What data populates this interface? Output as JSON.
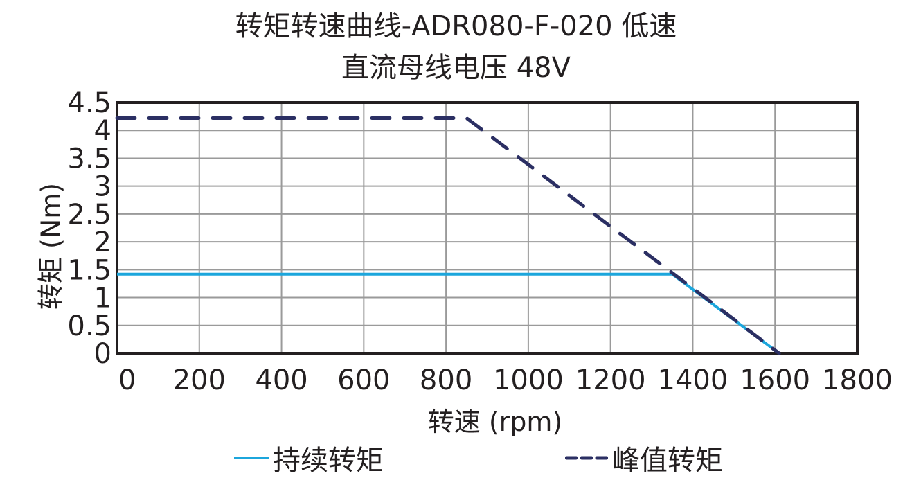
{
  "title_line1": "转矩转速曲线-ADR080-F-020 低速",
  "title_line2": "直流母线电压 48V",
  "colors": {
    "continuous": "#1ca6dc",
    "peak": "#2b2f63",
    "grid": "#9a9a9a",
    "axis": "#231f20"
  },
  "chart_data": {
    "type": "line",
    "title": "转矩转速曲线-ADR080-F-020 低速 / 直流母线电压 48V",
    "xlabel": "转速 (rpm)",
    "ylabel": "转矩 (Nm)",
    "xlim": [
      0,
      1800
    ],
    "ylim": [
      0,
      4.5
    ],
    "x_ticks": [
      "0",
      "200",
      "400",
      "600",
      "800",
      "1000",
      "1200",
      "1400",
      "1600",
      "1800"
    ],
    "y_ticks": [
      "0",
      "0.5",
      "1",
      "1.5",
      "2",
      "2.5",
      "3",
      "3.5",
      "4",
      "4.5"
    ],
    "grid": true,
    "legend_position": "bottom",
    "series": [
      {
        "name": "持续转矩",
        "style": "solid",
        "x": [
          0,
          1350,
          1610
        ],
        "y": [
          1.42,
          1.42,
          0
        ]
      },
      {
        "name": "峰值转矩",
        "style": "dashed",
        "x": [
          0,
          850,
          1610
        ],
        "y": [
          4.22,
          4.22,
          0
        ]
      }
    ]
  },
  "legend": {
    "continuous_label": "持续转矩",
    "peak_label": "峰值转矩"
  }
}
